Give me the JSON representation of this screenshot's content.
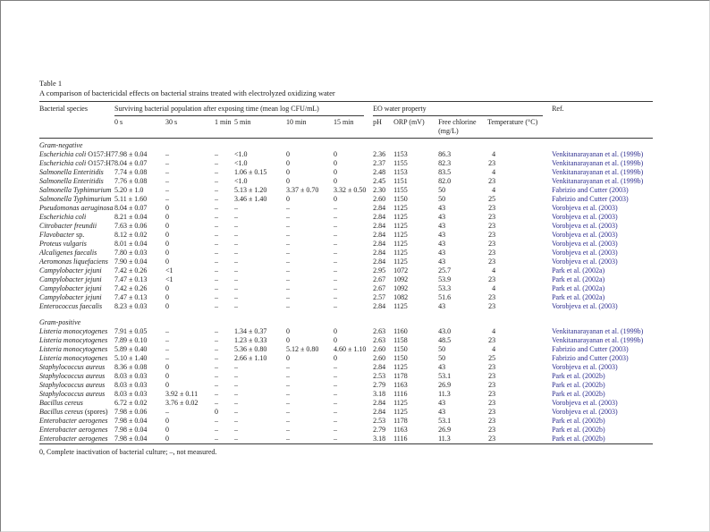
{
  "page": {
    "table_label": "Table 1",
    "caption": "A comparison of bactericidal effects on bacterial strains treated with electrolyzed oxidizing water",
    "footnote": "0, Complete inactivation of bacterial culture; –, not measured."
  },
  "table": {
    "link_color": "#2e2e8f",
    "col_groups": {
      "species": "Bacterial species",
      "surviving": "Surviving bacterial population after exposing time (mean log CFU/mL)",
      "eo": "EO water property",
      "ref": "Ref."
    },
    "columns": [
      "0 s",
      "30 s",
      "1 min",
      "5 min",
      "10 min",
      "15 min",
      "pH",
      "ORP (mV)",
      "Free chlorine (mg/L)",
      "Temperature (°C)"
    ],
    "sections": [
      {
        "label": "Gram-negative",
        "rows": [
          {
            "species": "Escherichia coli",
            "suffix": "O157:H7",
            "cells": [
              "7.98 ± 0.04",
              "–",
              "–",
              "<1.0",
              "0",
              "0",
              "2.36",
              "1153",
              "86.3",
              "4"
            ],
            "ref": "Venkitanarayanan et al. (1999b)"
          },
          {
            "species": "Escherichia coli",
            "suffix": "O157:H7",
            "cells": [
              "8.04 ± 0.07",
              "–",
              "–",
              "<1.0",
              "0",
              "0",
              "2.37",
              "1155",
              "82.3",
              "23"
            ],
            "ref": "Venkitanarayanan et al. (1999b)"
          },
          {
            "species": "Salmonella Enteritidis",
            "suffix": "",
            "cells": [
              "7.74 ± 0.08",
              "–",
              "–",
              "1.06 ± 0.15",
              "0",
              "0",
              "2.48",
              "1153",
              "83.5",
              "4"
            ],
            "ref": "Venkitanarayanan et al. (1999b)"
          },
          {
            "species": "Salmonella Enteritidis",
            "suffix": "",
            "cells": [
              "7.76 ± 0.08",
              "–",
              "–",
              "<1.0",
              "0",
              "0",
              "2.45",
              "1151",
              "82.0",
              "23"
            ],
            "ref": "Venkitanarayanan et al. (1999b)"
          },
          {
            "species": "Salmonella Typhimurium",
            "suffix": "",
            "cells": [
              "5.20 ± 1.0",
              "–",
              "–",
              "5.13 ± 1.20",
              "3.37 ± 0.70",
              "3.32 ± 0.50",
              "2.30",
              "1155",
              "50",
              "4"
            ],
            "ref": "Fabrizio and Cutter (2003)"
          },
          {
            "species": "Salmonella Typhimurium",
            "suffix": "",
            "cells": [
              "5.11 ± 1.60",
              "–",
              "–",
              "3.46 ± 1.40",
              "0",
              "0",
              "2.60",
              "1150",
              "50",
              "25"
            ],
            "ref": "Fabrizio and Cutter (2003)"
          },
          {
            "species": "Pseudomonas aeruginosa",
            "suffix": "",
            "cells": [
              "8.04 ± 0.07",
              "0",
              "–",
              "–",
              "–",
              "–",
              "2.84",
              "1125",
              "43",
              "23"
            ],
            "ref": "Vorobjeva et al. (2003)"
          },
          {
            "species": "Escherichia coli",
            "suffix": "",
            "cells": [
              "8.21 ± 0.04",
              "0",
              "–",
              "–",
              "–",
              "–",
              "2.84",
              "1125",
              "43",
              "23"
            ],
            "ref": "Vorobjeva et al. (2003)"
          },
          {
            "species": "Citrobacter freundii",
            "suffix": "",
            "cells": [
              "7.63 ± 0.06",
              "0",
              "–",
              "–",
              "–",
              "–",
              "2.84",
              "1125",
              "43",
              "23"
            ],
            "ref": "Vorobjeva et al. (2003)"
          },
          {
            "species": "Flavobacter",
            "suffix": "sp.",
            "cells": [
              "8.12 ± 0.02",
              "0",
              "–",
              "–",
              "–",
              "–",
              "2.84",
              "1125",
              "43",
              "23"
            ],
            "ref": "Vorobjeva et al. (2003)"
          },
          {
            "species": "Proteus vulgaris",
            "suffix": "",
            "cells": [
              "8.01 ± 0.04",
              "0",
              "–",
              "–",
              "–",
              "–",
              "2.84",
              "1125",
              "43",
              "23"
            ],
            "ref": "Vorobjeva et al. (2003)"
          },
          {
            "species": "Alcaligenes faecalis",
            "suffix": "",
            "cells": [
              "7.80 ± 0.03",
              "0",
              "–",
              "–",
              "–",
              "–",
              "2.84",
              "1125",
              "43",
              "23"
            ],
            "ref": "Vorobjeva et al. (2003)"
          },
          {
            "species": "Aeromonas liquefaciens",
            "suffix": "",
            "cells": [
              "7.90 ± 0.04",
              "0",
              "–",
              "–",
              "–",
              "–",
              "2.84",
              "1125",
              "43",
              "23"
            ],
            "ref": "Vorobjeva et al. (2003)"
          },
          {
            "species": "Campylobacter jejuni",
            "suffix": "",
            "cells": [
              "7.42 ± 0.26",
              "<1",
              "–",
              "–",
              "–",
              "–",
              "2.95",
              "1072",
              "25.7",
              "4"
            ],
            "ref": "Park et al. (2002a)"
          },
          {
            "species": "Campylobacter jejuni",
            "suffix": "",
            "cells": [
              "7.47 ± 0.13",
              "<1",
              "–",
              "–",
              "–",
              "–",
              "2.67",
              "1092",
              "53.9",
              "23"
            ],
            "ref": "Park et al. (2002a)"
          },
          {
            "species": "Campylobacter jejuni",
            "suffix": "",
            "cells": [
              "7.42 ± 0.26",
              "0",
              "–",
              "–",
              "–",
              "–",
              "2.67",
              "1092",
              "53.3",
              "4"
            ],
            "ref": "Park et al. (2002a)"
          },
          {
            "species": "Campylobacter jejuni",
            "suffix": "",
            "cells": [
              "7.47 ± 0.13",
              "0",
              "–",
              "–",
              "–",
              "–",
              "2.57",
              "1082",
              "51.6",
              "23"
            ],
            "ref": "Park et al. (2002a)"
          },
          {
            "species": "Enterococcus faecalis",
            "suffix": "",
            "cells": [
              "8.23 ± 0.03",
              "0",
              "–",
              "–",
              "–",
              "–",
              "2.84",
              "1125",
              "43",
              "23"
            ],
            "ref": "Vorobjeva et al. (2003)"
          }
        ]
      },
      {
        "label": "Gram-positive",
        "rows": [
          {
            "species": "Listeria monocytogenes",
            "suffix": "",
            "cells": [
              "7.91 ± 0.05",
              "–",
              "–",
              "1.34 ± 0.37",
              "0",
              "0",
              "2.63",
              "1160",
              "43.0",
              "4"
            ],
            "ref": "Venkitanarayanan et al. (1999b)"
          },
          {
            "species": "Listeria monocytogenes",
            "suffix": "",
            "cells": [
              "7.89 ± 0.10",
              "–",
              "–",
              "1.23 ± 0.33",
              "0",
              "0",
              "2.63",
              "1158",
              "48.5",
              "23"
            ],
            "ref": "Venkitanarayanan et al. (1999b)"
          },
          {
            "species": "Listeria monocytogenes",
            "suffix": "",
            "cells": [
              "5.89 ± 0.40",
              "–",
              "–",
              "5.36 ± 0.80",
              "5.12 ± 0.80",
              "4.60 ± 1.10",
              "2.60",
              "1150",
              "50",
              "4"
            ],
            "ref": "Fabrizio and Cutter (2003)"
          },
          {
            "species": "Listeria monocytogenes",
            "suffix": "",
            "cells": [
              "5.10 ± 1.40",
              "–",
              "–",
              "2.66 ± 1.10",
              "0",
              "0",
              "2.60",
              "1150",
              "50",
              "25"
            ],
            "ref": "Fabrizio and Cutter (2003)"
          },
          {
            "species": "Staphylococcus aureus",
            "suffix": "",
            "cells": [
              "8.36 ± 0.08",
              "0",
              "–",
              "–",
              "–",
              "–",
              "2.84",
              "1125",
              "43",
              "23"
            ],
            "ref": "Vorobjeva et al. (2003)"
          },
          {
            "species": "Staphylococcus aureus",
            "suffix": "",
            "cells": [
              "8.03 ± 0.03",
              "0",
              "–",
              "–",
              "–",
              "–",
              "2.53",
              "1178",
              "53.1",
              "23"
            ],
            "ref": "Park et al. (2002b)"
          },
          {
            "species": "Staphylococcus aureus",
            "suffix": "",
            "cells": [
              "8.03 ± 0.03",
              "0",
              "–",
              "–",
              "–",
              "–",
              "2.79",
              "1163",
              "26.9",
              "23"
            ],
            "ref": "Park et al. (2002b)"
          },
          {
            "species": "Staphylococcus aureus",
            "suffix": "",
            "cells": [
              "8.03 ± 0.03",
              "3.92 ± 0.11",
              "–",
              "–",
              "–",
              "–",
              "3.18",
              "1116",
              "11.3",
              "23"
            ],
            "ref": "Park et al. (2002b)"
          },
          {
            "species": "Bacillus cereus",
            "suffix": "",
            "cells": [
              "6.72 ± 0.02",
              "3.76 ± 0.02",
              "–",
              "–",
              "–",
              "–",
              "2.84",
              "1125",
              "43",
              "23"
            ],
            "ref": "Vorobjeva et al. (2003)"
          },
          {
            "species": "Bacillus cereus",
            "suffix": "(spores)",
            "cells": [
              "7.98 ± 0.06",
              "–",
              "0",
              "–",
              "–",
              "–",
              "2.84",
              "1125",
              "43",
              "23"
            ],
            "ref": "Vorobjeva et al. (2003)"
          },
          {
            "species": "Enterobacter aerogenes",
            "suffix": "",
            "cells": [
              "7.98 ± 0.04",
              "0",
              "–",
              "–",
              "–",
              "–",
              "2.53",
              "1178",
              "53.1",
              "23"
            ],
            "ref": "Park et al. (2002b)"
          },
          {
            "species": "Enterobacter aerogenes",
            "suffix": "",
            "cells": [
              "7.98 ± 0.04",
              "0",
              "–",
              "–",
              "–",
              "–",
              "2.79",
              "1163",
              "26.9",
              "23"
            ],
            "ref": "Park et al. (2002b)"
          },
          {
            "species": "Enterobacter aerogenes",
            "suffix": "",
            "cells": [
              "7.98 ± 0.04",
              "0",
              "–",
              "–",
              "–",
              "–",
              "3.18",
              "1116",
              "11.3",
              "23"
            ],
            "ref": "Park et al. (2002b)"
          }
        ]
      }
    ]
  }
}
